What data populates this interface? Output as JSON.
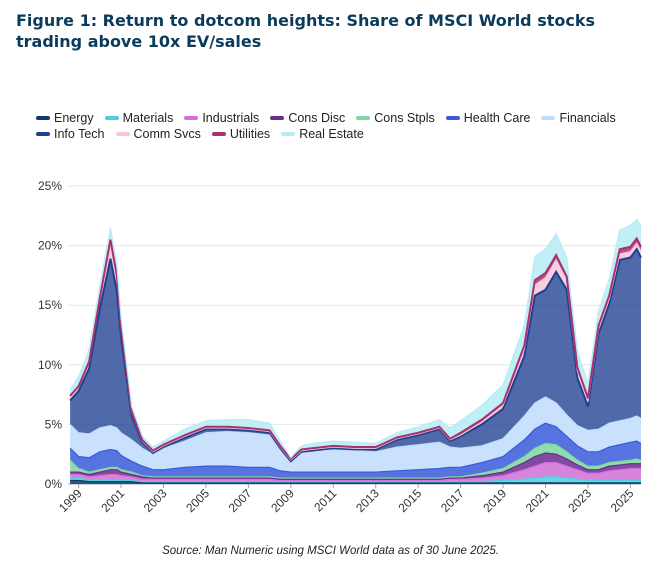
{
  "figure": {
    "title": "Figure 1: Return to dotcom heights: Share of MSCI World stocks trading above 10x EV/sales",
    "source": "Source: Man Numeric using MSCI World data as of 30 June 2025."
  },
  "chart_data": {
    "type": "area",
    "stacked": true,
    "title": "Figure 1: Return to dotcom heights: Share of MSCI World stocks trading above 10x EV/sales",
    "xlabel": "",
    "ylabel": "",
    "xlim": [
      1998.5,
      2025.5
    ],
    "ylim": [
      0,
      25
    ],
    "y_ticks": [
      "0%",
      "5%",
      "10%",
      "15%",
      "20%",
      "25%"
    ],
    "x_ticks": [
      "1999",
      "2001",
      "2003",
      "2005",
      "2007",
      "2009",
      "2011",
      "2013",
      "2015",
      "2017",
      "2019",
      "2021",
      "2023",
      "2025"
    ],
    "grid": "horizontal",
    "legend_position": "top",
    "x": [
      1998.6,
      1999.0,
      1999.5,
      2000.0,
      2000.5,
      2000.8,
      2001.0,
      2001.5,
      2002.0,
      2002.5,
      2003.0,
      2004.0,
      2005.0,
      2006.0,
      2007.0,
      2008.0,
      2008.5,
      2009.0,
      2009.5,
      2010.0,
      2011.0,
      2012.0,
      2013.0,
      2014.0,
      2015.0,
      2016.0,
      2016.5,
      2017.0,
      2018.0,
      2019.0,
      2020.0,
      2020.5,
      2021.0,
      2021.5,
      2022.0,
      2022.5,
      2023.0,
      2023.5,
      2024.0,
      2024.5,
      2025.0,
      2025.3,
      2025.5
    ],
    "series": [
      {
        "name": "Energy",
        "color": "#0b3b6b",
        "values": [
          0.3,
          0.3,
          0.2,
          0.2,
          0.2,
          0.2,
          0.2,
          0.2,
          0.1,
          0.1,
          0.1,
          0.1,
          0.1,
          0.1,
          0.1,
          0.1,
          0.1,
          0.1,
          0.1,
          0.1,
          0.1,
          0.1,
          0.1,
          0.1,
          0.1,
          0.1,
          0.1,
          0.1,
          0.1,
          0.1,
          0.1,
          0.1,
          0.1,
          0.1,
          0.1,
          0.1,
          0.1,
          0.1,
          0.1,
          0.1,
          0.1,
          0.1,
          0.1
        ]
      },
      {
        "name": "Materials",
        "color": "#4dd0e1",
        "values": [
          0.2,
          0.2,
          0.1,
          0.1,
          0.1,
          0.1,
          0.1,
          0.1,
          0.1,
          0.1,
          0.1,
          0.1,
          0.1,
          0.1,
          0.1,
          0.1,
          0.1,
          0.1,
          0.1,
          0.1,
          0.1,
          0.1,
          0.1,
          0.1,
          0.1,
          0.1,
          0.1,
          0.1,
          0.1,
          0.2,
          0.3,
          0.4,
          0.5,
          0.5,
          0.4,
          0.3,
          0.2,
          0.2,
          0.2,
          0.2,
          0.2,
          0.2,
          0.2
        ]
      },
      {
        "name": "Industrials",
        "color": "#d06fd6",
        "values": [
          0.3,
          0.3,
          0.3,
          0.4,
          0.5,
          0.5,
          0.4,
          0.3,
          0.2,
          0.2,
          0.2,
          0.2,
          0.2,
          0.2,
          0.2,
          0.2,
          0.1,
          0.1,
          0.1,
          0.1,
          0.1,
          0.1,
          0.1,
          0.1,
          0.1,
          0.1,
          0.2,
          0.2,
          0.3,
          0.4,
          0.8,
          1.0,
          1.2,
          1.2,
          1.0,
          0.8,
          0.6,
          0.6,
          0.8,
          0.9,
          1.0,
          1.0,
          1.0
        ]
      },
      {
        "name": "Cons Disc",
        "color": "#6a2c91",
        "values": [
          0.2,
          0.2,
          0.2,
          0.3,
          0.4,
          0.4,
          0.3,
          0.2,
          0.2,
          0.1,
          0.1,
          0.1,
          0.1,
          0.1,
          0.1,
          0.1,
          0.1,
          0.1,
          0.1,
          0.1,
          0.1,
          0.1,
          0.1,
          0.1,
          0.1,
          0.1,
          0.1,
          0.1,
          0.2,
          0.3,
          0.6,
          0.8,
          0.8,
          0.7,
          0.6,
          0.4,
          0.3,
          0.3,
          0.4,
          0.4,
          0.4,
          0.4,
          0.4
        ]
      },
      {
        "name": "Cons Stpls",
        "color": "#7ed6a0",
        "values": [
          1.0,
          0.3,
          0.2,
          0.2,
          0.2,
          0.2,
          0.2,
          0.2,
          0.1,
          0.1,
          0.1,
          0.1,
          0.1,
          0.1,
          0.1,
          0.1,
          0.1,
          0.1,
          0.1,
          0.1,
          0.1,
          0.1,
          0.1,
          0.1,
          0.1,
          0.1,
          0.1,
          0.1,
          0.2,
          0.3,
          0.5,
          0.7,
          0.8,
          0.8,
          0.6,
          0.4,
          0.3,
          0.3,
          0.3,
          0.3,
          0.3,
          0.4,
          0.3
        ]
      },
      {
        "name": "Health Care",
        "color": "#3a5bd9",
        "values": [
          1.0,
          1.0,
          1.2,
          1.5,
          1.5,
          1.4,
          1.2,
          0.9,
          0.8,
          0.6,
          0.6,
          0.8,
          0.9,
          0.9,
          0.8,
          0.8,
          0.6,
          0.5,
          0.5,
          0.5,
          0.5,
          0.5,
          0.5,
          0.6,
          0.7,
          0.8,
          0.8,
          0.8,
          0.9,
          1.0,
          1.4,
          1.6,
          1.7,
          1.5,
          1.3,
          1.2,
          1.2,
          1.2,
          1.3,
          1.4,
          1.5,
          1.5,
          1.4
        ]
      },
      {
        "name": "Financials",
        "color": "#bfdcfb",
        "values": [
          2.0,
          2.0,
          2.0,
          2.0,
          2.0,
          1.9,
          1.9,
          1.8,
          1.5,
          1.3,
          1.8,
          2.2,
          2.8,
          2.9,
          2.9,
          2.7,
          1.8,
          0.9,
          1.7,
          1.8,
          1.9,
          1.8,
          1.7,
          2.0,
          2.1,
          2.2,
          1.7,
          1.6,
          1.4,
          1.5,
          2.0,
          2.2,
          2.2,
          2.0,
          1.8,
          1.7,
          1.8,
          1.9,
          2.0,
          2.0,
          2.0,
          2.1,
          2.1
        ]
      },
      {
        "name": "Info Tech",
        "color": "#1f3f8f",
        "values": [
          2.0,
          3.5,
          5.5,
          10.0,
          14.0,
          11.5,
          8.0,
          2.0,
          0.5,
          0.1,
          0.1,
          0.3,
          0.3,
          0.2,
          0.2,
          0.2,
          0.1,
          0.0,
          0.0,
          0.0,
          0.1,
          0.1,
          0.2,
          0.6,
          0.8,
          1.1,
          0.5,
          1.0,
          1.8,
          2.5,
          5.0,
          9.0,
          9.0,
          11.0,
          10.5,
          4.0,
          2.0,
          8.0,
          10.0,
          13.5,
          13.5,
          14.0,
          13.5
        ]
      },
      {
        "name": "Comm Svcs",
        "color": "#f7c6dc",
        "values": [
          0.3,
          0.3,
          0.5,
          0.8,
          1.5,
          1.2,
          0.8,
          0.3,
          0.1,
          0.1,
          0.1,
          0.1,
          0.1,
          0.1,
          0.1,
          0.1,
          0.1,
          0.1,
          0.1,
          0.1,
          0.1,
          0.1,
          0.1,
          0.1,
          0.1,
          0.1,
          0.1,
          0.1,
          0.2,
          0.3,
          0.6,
          0.9,
          1.0,
          1.0,
          0.8,
          0.6,
          0.4,
          0.4,
          0.4,
          0.5,
          0.5,
          0.5,
          0.5
        ]
      },
      {
        "name": "Utilities",
        "color": "#a8326e",
        "values": [
          0.1,
          0.1,
          0.1,
          0.1,
          0.1,
          0.1,
          0.1,
          0.1,
          0.1,
          0.1,
          0.1,
          0.1,
          0.1,
          0.1,
          0.1,
          0.1,
          0.1,
          0.1,
          0.1,
          0.1,
          0.1,
          0.1,
          0.1,
          0.1,
          0.1,
          0.1,
          0.1,
          0.2,
          0.2,
          0.2,
          0.3,
          0.4,
          0.4,
          0.4,
          0.3,
          0.3,
          0.3,
          0.3,
          0.3,
          0.4,
          0.4,
          0.4,
          0.4
        ]
      },
      {
        "name": "Real Estate",
        "color": "#b6ecf5",
        "values": [
          0.5,
          0.8,
          1.0,
          1.0,
          1.0,
          0.9,
          0.7,
          0.4,
          0.3,
          0.3,
          0.3,
          0.5,
          0.5,
          0.6,
          0.7,
          0.6,
          0.4,
          0.1,
          0.3,
          0.4,
          0.4,
          0.4,
          0.3,
          0.4,
          0.5,
          0.6,
          0.9,
          1.0,
          1.2,
          1.5,
          1.7,
          2.0,
          2.0,
          1.8,
          1.6,
          1.4,
          1.2,
          1.2,
          1.4,
          1.6,
          1.8,
          1.6,
          1.8
        ]
      }
    ]
  }
}
